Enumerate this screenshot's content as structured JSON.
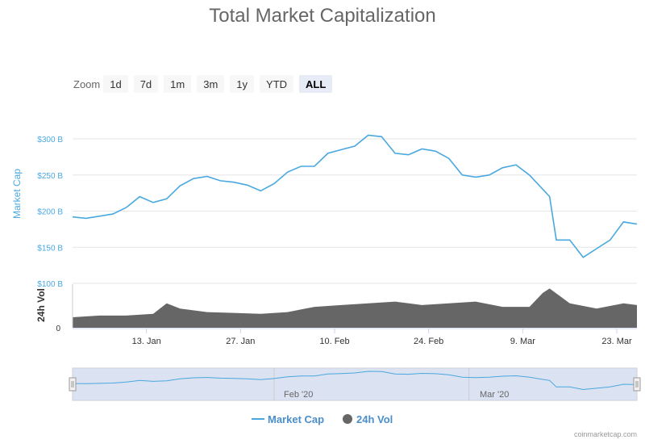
{
  "chart_data": {
    "type": "line",
    "title": "Total Market Capitalization",
    "ylabel": "Market Cap",
    "ylabel_volume": "24h Vol",
    "ylim": [
      100,
      300
    ],
    "yticks": [
      "$300 B",
      "$250 B",
      "$200 B",
      "$150 B",
      "$100 B"
    ],
    "yticks_volume": [
      "0"
    ],
    "x_ticks": [
      "13. Jan",
      "27. Jan",
      "10. Feb",
      "24. Feb",
      "9. Mar",
      "23. Mar"
    ],
    "navigator_ticks": [
      "Feb '20",
      "Mar '20"
    ],
    "zoom_label": "Zoom",
    "zoom_options": [
      "1d",
      "7d",
      "1m",
      "3m",
      "1y",
      "YTD",
      "ALL"
    ],
    "zoom_selected": "ALL",
    "legend_position": "bottom",
    "grid": true,
    "series": [
      {
        "name": "Market Cap",
        "color": "#4aa8e0",
        "x": [
          "Jan 2",
          "Jan 4",
          "Jan 6",
          "Jan 8",
          "Jan 10",
          "Jan 12",
          "Jan 14",
          "Jan 16",
          "Jan 18",
          "Jan 20",
          "Jan 22",
          "Jan 24",
          "Jan 26",
          "Jan 28",
          "Jan 30",
          "Feb 1",
          "Feb 3",
          "Feb 5",
          "Feb 7",
          "Feb 9",
          "Feb 11",
          "Feb 13",
          "Feb 15",
          "Feb 17",
          "Feb 19",
          "Feb 21",
          "Feb 23",
          "Feb 25",
          "Feb 27",
          "Feb 29",
          "Mar 2",
          "Mar 4",
          "Mar 6",
          "Mar 8",
          "Mar 10",
          "Mar 12",
          "Mar 13",
          "Mar 14",
          "Mar 16",
          "Mar 18",
          "Mar 20",
          "Mar 22",
          "Mar 24",
          "Mar 26"
        ],
        "values": [
          192,
          190,
          193,
          196,
          205,
          220,
          212,
          217,
          235,
          245,
          248,
          242,
          240,
          236,
          228,
          238,
          254,
          262,
          262,
          280,
          285,
          290,
          305,
          303,
          280,
          278,
          286,
          283,
          273,
          250,
          247,
          250,
          260,
          264,
          250,
          230,
          220,
          160,
          160,
          136,
          148,
          160,
          185,
          182
        ]
      },
      {
        "name": "24h Vol",
        "color": "#666666",
        "x": [
          "Jan 2",
          "Jan 6",
          "Jan 10",
          "Jan 14",
          "Jan 16",
          "Jan 18",
          "Jan 22",
          "Jan 26",
          "Jan 30",
          "Feb 3",
          "Feb 7",
          "Feb 11",
          "Feb 15",
          "Feb 19",
          "Feb 23",
          "Feb 27",
          "Mar 2",
          "Mar 6",
          "Mar 10",
          "Mar 12",
          "Mar 13",
          "Mar 16",
          "Mar 20",
          "Mar 24",
          "Mar 26"
        ],
        "values": [
          12,
          14,
          14,
          16,
          28,
          22,
          18,
          17,
          16,
          18,
          24,
          26,
          28,
          30,
          26,
          28,
          30,
          24,
          24,
          40,
          45,
          28,
          22,
          28,
          26
        ]
      }
    ]
  },
  "legend": {
    "market_cap": "Market Cap",
    "volume": "24h Vol"
  },
  "credit": "coinmarketcap.com"
}
